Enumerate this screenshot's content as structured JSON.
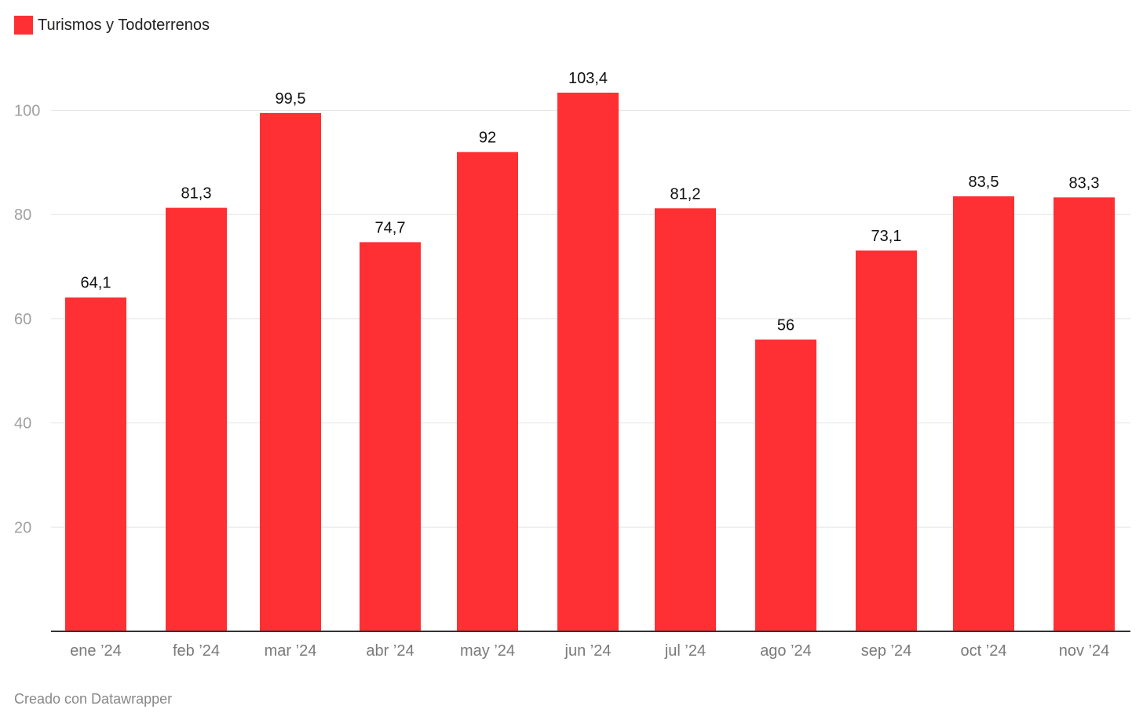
{
  "chart_data": {
    "type": "bar",
    "legend": {
      "label": "Turismos y Todoterrenos",
      "placement": "top-left"
    },
    "categories": [
      "ene ’24",
      "feb ’24",
      "mar ’24",
      "abr ’24",
      "may ’24",
      "jun ’24",
      "jul ’24",
      "ago ’24",
      "sep ’24",
      "oct ’24",
      "nov ’24"
    ],
    "series": [
      {
        "name": "Turismos y Todoterrenos",
        "values": [
          64.1,
          81.3,
          99.5,
          74.7,
          92,
          103.4,
          81.2,
          56,
          73.1,
          83.5,
          83.3
        ],
        "labels": [
          "64,1",
          "81,3",
          "99,5",
          "74,7",
          "92",
          "103,4",
          "81,2",
          "56",
          "73,1",
          "83,5",
          "83,3"
        ]
      }
    ],
    "yticks": [
      20,
      40,
      60,
      80,
      100
    ],
    "ylim": [
      0,
      103.4
    ],
    "grid": true,
    "colors": {
      "bar": "#ff3033",
      "grid": "#e4e4e4",
      "axis": "#333333",
      "tick_text": "#a0a0a0",
      "label_text": "#111111"
    }
  },
  "footer": {
    "credit": "Creado con Datawrapper"
  }
}
